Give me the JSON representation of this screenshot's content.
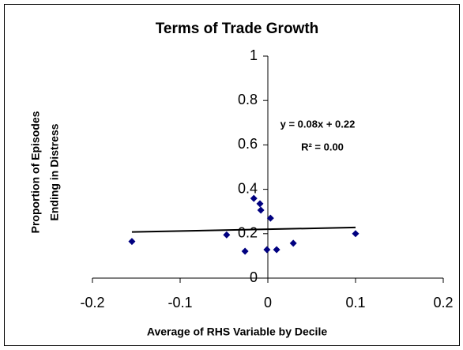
{
  "chart_data": {
    "type": "scatter",
    "title": "Terms of Trade Growth",
    "x_label": "Average of RHS Variable by Decile",
    "y_label": [
      "Proportion of Episodes",
      "Ending in Distress"
    ],
    "x": [
      -0.155,
      -0.047,
      -0.026,
      -0.016,
      -0.009,
      -0.008,
      -0.001,
      0.003,
      0.01,
      0.029,
      0.1
    ],
    "values": [
      0.165,
      0.195,
      0.121,
      0.359,
      0.335,
      0.306,
      0.128,
      0.27,
      0.128,
      0.157,
      0.2
    ],
    "color": "#000080",
    "xlim": [
      -0.2,
      0.2
    ],
    "xticks": [
      -0.2,
      -0.1,
      0,
      0.1,
      0.2
    ],
    "ylim": [
      0,
      1
    ],
    "yticks": [
      0,
      0.2,
      0.4,
      0.6,
      0.8,
      1
    ],
    "grid": false,
    "trendline": {
      "slope": 0.08,
      "intercept": 0.22,
      "equation": "y = 0.08x + 0.22",
      "r_squared": "R² = 0.00"
    }
  }
}
